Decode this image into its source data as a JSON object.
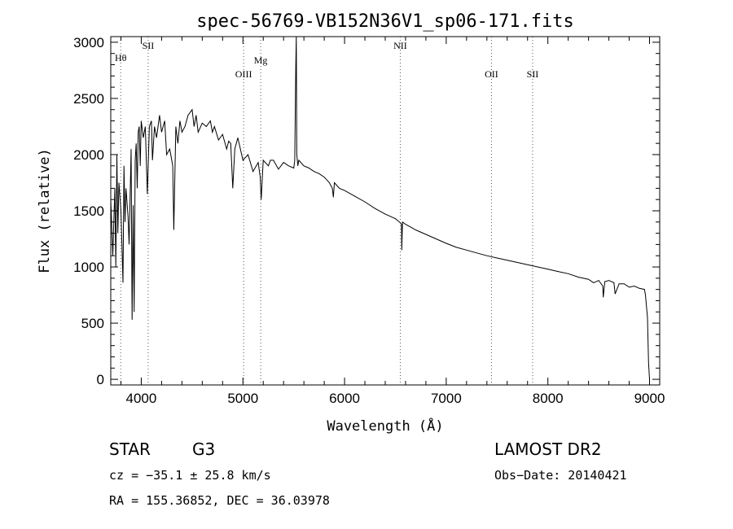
{
  "chart_data": {
    "type": "line",
    "title": "spec-56769-VB152N36V1_sp06-171.fits",
    "xlabel": "Wavelength (Å)",
    "ylabel": "Flux (relative)",
    "xlim": [
      3700,
      9100
    ],
    "ylim": [
      -50,
      3050
    ],
    "x_ticks": [
      4000,
      5000,
      6000,
      7000,
      8000,
      9000
    ],
    "y_ticks": [
      0,
      500,
      1000,
      1500,
      2000,
      2500,
      3000
    ],
    "grid": false,
    "line_color": "#000000",
    "reference_line_color": "#555555",
    "spectrum": {
      "x": [
        3700,
        3720,
        3740,
        3750,
        3760,
        3770,
        3780,
        3800,
        3810,
        3820,
        3830,
        3840,
        3850,
        3870,
        3880,
        3890,
        3900,
        3910,
        3920,
        3930,
        3940,
        3950,
        3960,
        3970,
        3980,
        3990,
        4000,
        4020,
        4040,
        4060,
        4080,
        4100,
        4110,
        4130,
        4150,
        4180,
        4200,
        4230,
        4250,
        4280,
        4300,
        4310,
        4320,
        4340,
        4360,
        4380,
        4400,
        4430,
        4460,
        4500,
        4520,
        4540,
        4560,
        4600,
        4640,
        4680,
        4700,
        4720,
        4760,
        4800,
        4840,
        4860,
        4880,
        4900,
        4920,
        4950,
        5000,
        5050,
        5100,
        5150,
        5170,
        5180,
        5200,
        5250,
        5270,
        5300,
        5350,
        5400,
        5450,
        5500,
        5510,
        5520,
        5525,
        5530,
        5540,
        5550,
        5600,
        5650,
        5700,
        5750,
        5800,
        5850,
        5880,
        5890,
        5900,
        5950,
        6000,
        6100,
        6200,
        6300,
        6400,
        6500,
        6540,
        6560,
        6563,
        6570,
        6600,
        6700,
        6800,
        6900,
        7000,
        7100,
        7200,
        7300,
        7400,
        7500,
        7600,
        7700,
        7800,
        7900,
        8000,
        8100,
        8200,
        8300,
        8400,
        8450,
        8500,
        8540,
        8545,
        8560,
        8600,
        8650,
        8662,
        8700,
        8750,
        8800,
        8850,
        8900,
        8950,
        8960,
        8980,
        8990,
        9000
      ],
      "y": [
        1600,
        1100,
        1700,
        1000,
        2000,
        1300,
        1750,
        1500,
        1200,
        860,
        1900,
        1400,
        1700,
        1450,
        1200,
        1600,
        2050,
        530,
        1550,
        600,
        1950,
        2100,
        1700,
        2200,
        2250,
        1900,
        2300,
        2150,
        2250,
        1650,
        2250,
        2300,
        1950,
        2250,
        2150,
        2350,
        2200,
        2300,
        2000,
        2050,
        1950,
        1900,
        1330,
        2250,
        2100,
        2300,
        2200,
        2250,
        2350,
        2400,
        2250,
        2350,
        2200,
        2280,
        2250,
        2300,
        2200,
        2250,
        2130,
        2180,
        2050,
        2120,
        2100,
        1700,
        2050,
        2150,
        1950,
        2000,
        1850,
        1930,
        1800,
        1600,
        1950,
        1900,
        1950,
        1950,
        1870,
        1930,
        1900,
        1880,
        1950,
        2800,
        3050,
        2000,
        1900,
        1950,
        1900,
        1880,
        1850,
        1830,
        1800,
        1750,
        1700,
        1620,
        1750,
        1700,
        1680,
        1630,
        1580,
        1520,
        1470,
        1430,
        1400,
        1380,
        1150,
        1400,
        1380,
        1330,
        1290,
        1250,
        1210,
        1175,
        1150,
        1125,
        1100,
        1080,
        1060,
        1040,
        1020,
        1000,
        980,
        960,
        940,
        910,
        890,
        860,
        880,
        830,
        730,
        870,
        880,
        860,
        760,
        850,
        850,
        820,
        830,
        810,
        800,
        750,
        550,
        150,
        0
      ]
    },
    "reference_lines": [
      {
        "label": "Hθ",
        "x": 3798
      },
      {
        "label": "SII",
        "x": 4068
      },
      {
        "label": "OIII",
        "x": 5007
      },
      {
        "label": "Mg",
        "x": 5175
      },
      {
        "label": "NII",
        "x": 6548
      },
      {
        "label": "OII",
        "x": 7445
      },
      {
        "label": "SII",
        "x": 7850
      }
    ]
  },
  "info": {
    "object_class": "STAR",
    "subclass": "G3",
    "survey": "LAMOST DR2",
    "cz": "cz = −35.1 ± 25.8 km/s",
    "obs_date": "Obs−Date: 20140421",
    "coords": "RA = 155.36852, DEC =  36.03978"
  }
}
